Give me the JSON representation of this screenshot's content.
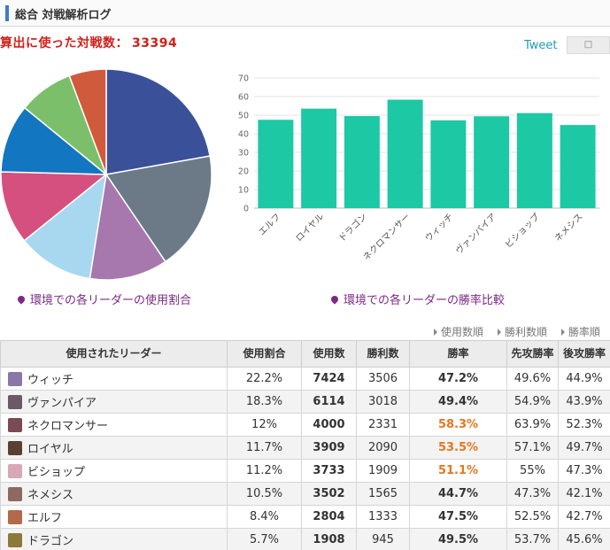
{
  "header": {
    "title": "総合 対戦解析ログ"
  },
  "summary": {
    "label": "算出に使った対戦数：",
    "value": "33394"
  },
  "share": {
    "tweet_label": "Tweet",
    "share_icon": "bookmark-icon"
  },
  "captions": {
    "pie": "環境での各リーダーの使用割合",
    "bar": "環境での各リーダーの勝率比較"
  },
  "sort_links": [
    "使用数順",
    "勝利数順",
    "勝率順"
  ],
  "table": {
    "headers": [
      "使用されたリーダー",
      "使用割合",
      "使用数",
      "勝利数",
      "勝率",
      "先攻勝率",
      "後攻勝率"
    ],
    "rows": [
      {
        "leader": "ウィッチ",
        "share": "22.2%",
        "uses": "7424",
        "wins": "3506",
        "rate": "47.2%",
        "first": "49.6%",
        "second": "44.9%",
        "hi": false,
        "avatar": "#8a77a8"
      },
      {
        "leader": "ヴァンパイア",
        "share": "18.3%",
        "uses": "6114",
        "wins": "3018",
        "rate": "49.4%",
        "first": "54.9%",
        "second": "43.9%",
        "hi": false,
        "avatar": "#6b5a66"
      },
      {
        "leader": "ネクロマンサー",
        "share": "12%",
        "uses": "4000",
        "wins": "2331",
        "rate": "58.3%",
        "first": "63.9%",
        "second": "52.3%",
        "hi": true,
        "avatar": "#7a4b55"
      },
      {
        "leader": "ロイヤル",
        "share": "11.7%",
        "uses": "3909",
        "wins": "2090",
        "rate": "53.5%",
        "first": "57.1%",
        "second": "49.7%",
        "hi": true,
        "avatar": "#5a4032"
      },
      {
        "leader": "ビショップ",
        "share": "11.2%",
        "uses": "3733",
        "wins": "1909",
        "rate": "51.1%",
        "first": "55%",
        "second": "47.3%",
        "hi": true,
        "avatar": "#d9a8b6"
      },
      {
        "leader": "ネメシス",
        "share": "10.5%",
        "uses": "3502",
        "wins": "1565",
        "rate": "44.7%",
        "first": "47.3%",
        "second": "42.1%",
        "hi": false,
        "avatar": "#8c6a60"
      },
      {
        "leader": "エルフ",
        "share": "8.4%",
        "uses": "2804",
        "wins": "1333",
        "rate": "47.5%",
        "first": "52.5%",
        "second": "42.7%",
        "hi": false,
        "avatar": "#b26a4a"
      },
      {
        "leader": "ドラゴン",
        "share": "5.7%",
        "uses": "1908",
        "wins": "945",
        "rate": "49.5%",
        "first": "53.7%",
        "second": "45.6%",
        "hi": false,
        "avatar": "#8b7a3c"
      }
    ]
  },
  "chart_data": [
    {
      "type": "pie",
      "categories": [
        "ウィッチ",
        "ヴァンパイア",
        "ネクロマンサー",
        "ロイヤル",
        "ビショップ",
        "ネメシス",
        "エルフ",
        "ドラゴン"
      ],
      "values": [
        22.2,
        18.3,
        12,
        11.7,
        11.2,
        10.5,
        8.4,
        5.7
      ],
      "colors": [
        "#3a5199",
        "#6c7a87",
        "#a678ad",
        "#a8d8f0",
        "#d5507e",
        "#1276c0",
        "#7bbf6a",
        "#d05a3c"
      ],
      "title": "環境での各リーダーの使用割合"
    },
    {
      "type": "bar",
      "categories": [
        "エルフ",
        "ロイヤル",
        "ドラゴン",
        "ネクロマンサー",
        "ウィッチ",
        "ヴァンパイア",
        "ビショップ",
        "ネメシス"
      ],
      "values": [
        47.5,
        53.5,
        49.5,
        58.3,
        47.2,
        49.4,
        51.1,
        44.7
      ],
      "color": "#1dc8a4",
      "ylim": [
        0,
        70
      ],
      "yticks": [
        0,
        10,
        20,
        30,
        40,
        50,
        60,
        70
      ],
      "grid": true,
      "title": "環境での各リーダーの勝率比較"
    }
  ]
}
